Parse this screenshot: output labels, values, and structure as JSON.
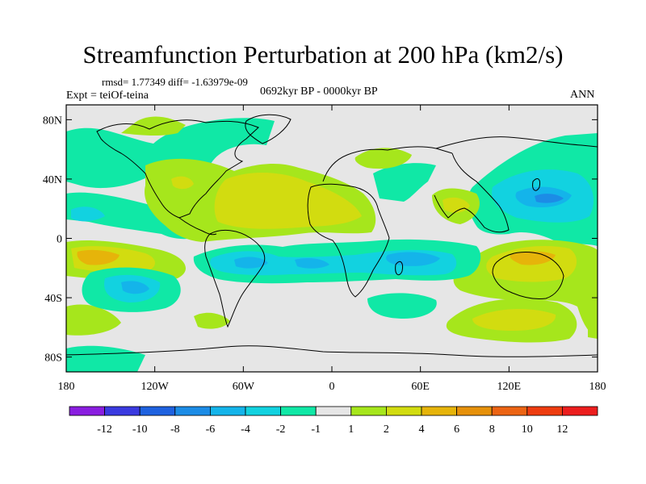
{
  "title": "Streamfunction Perturbation at 200 hPa (km2/s)",
  "stats": "rmsd= 1.77349 diff= -1.63979e-09",
  "experiment": "Expt = teiOf-teina",
  "period": "0692kyr BP - 0000kyr BP",
  "season": "ANN",
  "chart_data": {
    "type": "contour-map",
    "title": "Streamfunction Perturbation at 200 hPa (km2/s)",
    "xlabels": [
      "180",
      "120W",
      "60W",
      "0",
      "60E",
      "120E",
      "180"
    ],
    "ylabels": [
      "80N",
      "40N",
      "0",
      "40S",
      "80S"
    ],
    "xlim": [
      -180,
      180
    ],
    "ylim": [
      -90,
      90
    ],
    "colorbar": {
      "labels": [
        "-12",
        "-10",
        "-8",
        "-6",
        "-4",
        "-2",
        "-1",
        "1",
        "2",
        "4",
        "6",
        "8",
        "10",
        "12"
      ],
      "colors": [
        "#8a1ee0",
        "#3a3ae0",
        "#1f62e0",
        "#1c8ce6",
        "#14b4ea",
        "#12d2e0",
        "#10e8a6",
        "#e6e6e6",
        "#a6e61c",
        "#d2dc10",
        "#e6b40a",
        "#e6910a",
        "#ec6414",
        "#ee3c10",
        "#ec1e1e"
      ]
    },
    "regions": [
      {
        "name": "sh-tropical-negative-band",
        "value": "-4"
      },
      {
        "name": "nh-extratropical-negative-band",
        "value": "-2"
      },
      {
        "name": "west-pacific-negative-center",
        "value": "-6"
      },
      {
        "name": "atlantic-africa-positive-band",
        "value": "2"
      },
      {
        "name": "south-pacific-positive-center",
        "value": "4"
      },
      {
        "name": "australia-positive-band",
        "value": "2"
      }
    ]
  }
}
